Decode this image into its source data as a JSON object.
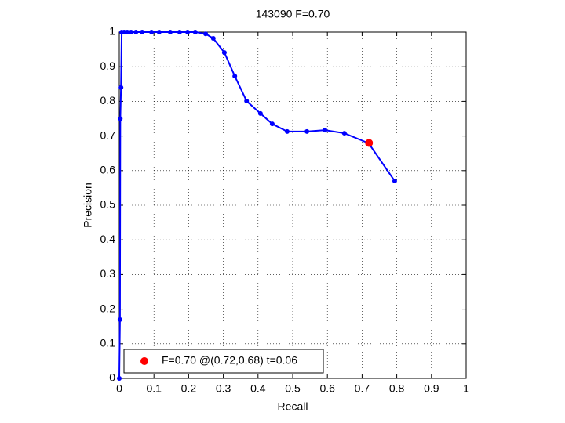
{
  "chart_data": {
    "type": "line",
    "title": "143090 F=0.70",
    "xlabel": "Recall",
    "ylabel": "Precision",
    "xlim": [
      0,
      1
    ],
    "ylim": [
      0,
      1
    ],
    "xticks": [
      0,
      0.1,
      0.2,
      0.3,
      0.4,
      0.5,
      0.6,
      0.7,
      0.8,
      0.9,
      1
    ],
    "yticks": [
      0,
      0.1,
      0.2,
      0.3,
      0.4,
      0.5,
      0.6,
      0.7,
      0.8,
      0.9,
      1
    ],
    "grid": true,
    "legend": "lower left",
    "series": [
      {
        "color": "#0000ff",
        "x": [
          0,
          0.002,
          0.003,
          0.005,
          0.007,
          0.014,
          0.023,
          0.034,
          0.048,
          0.066,
          0.093,
          0.115,
          0.147,
          0.174,
          0.197,
          0.219,
          0.249,
          0.271,
          0.303,
          0.333,
          0.367,
          0.407,
          0.441,
          0.484,
          0.541,
          0.593,
          0.649,
          0.719,
          0.794
        ],
        "values": [
          0,
          0.17,
          0.75,
          0.84,
          1,
          1,
          1,
          1,
          1,
          1,
          1,
          1,
          1,
          1,
          1,
          1,
          0.995,
          0.982,
          0.941,
          0.873,
          0.801,
          0.765,
          0.735,
          0.713,
          0.713,
          0.717,
          0.708,
          0.679,
          0.57
        ]
      },
      {
        "name": "F=0.70 @(0.72,0.68) t=0.06",
        "color": "#ff0000",
        "x": [
          0.72
        ],
        "values": [
          0.68
        ]
      }
    ]
  }
}
